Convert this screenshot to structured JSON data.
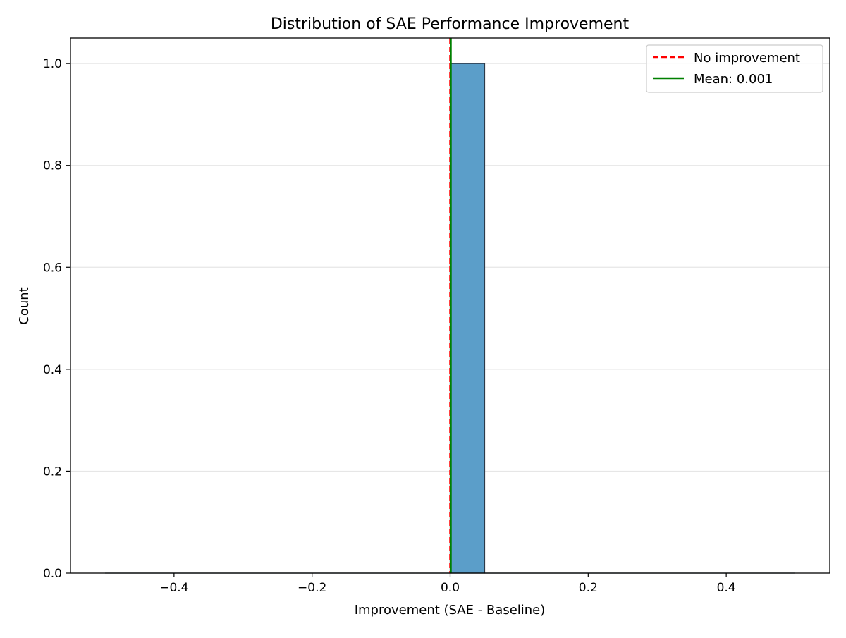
{
  "chart_data": {
    "type": "bar",
    "title": "Distribution of SAE Performance Improvement",
    "xlabel": "Improvement (SAE - Baseline)",
    "ylabel": "Count",
    "xlim": [
      -0.55,
      0.55
    ],
    "ylim": [
      0,
      1.05
    ],
    "xticks": [
      -0.4,
      -0.2,
      0.0,
      0.2,
      0.4
    ],
    "xtick_labels": [
      "−0.4",
      "−0.2",
      "0.0",
      "0.2",
      "0.4"
    ],
    "yticks": [
      0.0,
      0.2,
      0.4,
      0.6,
      0.8,
      1.0
    ],
    "ytick_labels": [
      "0.0",
      "0.2",
      "0.4",
      "0.6",
      "0.8",
      "1.0"
    ],
    "grid": "y",
    "bins": {
      "start": -0.5,
      "width": 0.05,
      "counts": [
        0,
        0,
        0,
        0,
        0,
        0,
        0,
        0,
        0,
        0,
        1,
        0,
        0,
        0,
        0,
        0,
        0,
        0,
        0,
        0
      ]
    },
    "bar_color": "#5b9ec9",
    "bar_edge_color": "#2b3a4a",
    "vlines": [
      {
        "name": "No improvement",
        "x": 0.0,
        "color": "#ff0000",
        "style": "dashed"
      },
      {
        "name": "Mean: 0.001",
        "x": 0.001,
        "color": "#008000",
        "style": "solid"
      }
    ],
    "legend": {
      "position": "top-right",
      "entries": [
        "No improvement",
        "Mean: 0.001"
      ]
    }
  }
}
